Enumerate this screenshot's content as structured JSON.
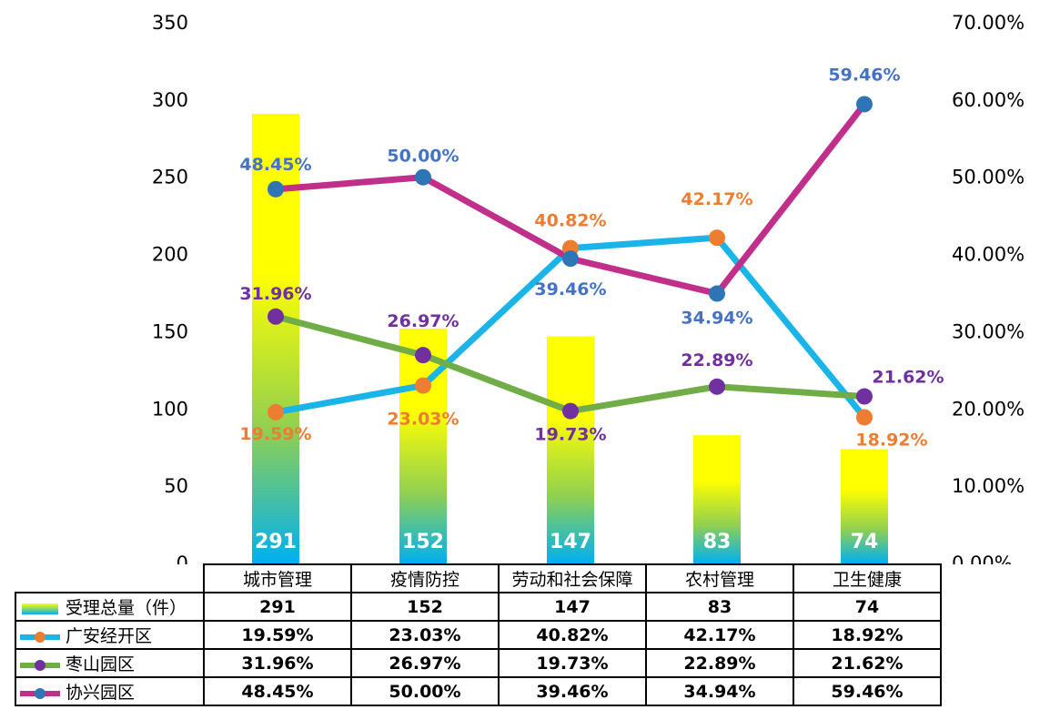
{
  "chart_data": {
    "type": "bar+line",
    "categories": [
      "城市管理",
      "疫情防控",
      "劳动和社会保障",
      "农村管理",
      "卫生健康"
    ],
    "bars": {
      "name": "受理总量（件）",
      "values": [
        291,
        152,
        147,
        83,
        74
      ],
      "labels": [
        "291",
        "152",
        "147",
        "83",
        "74"
      ]
    },
    "series": [
      {
        "name": "广安经开区",
        "values": [
          19.59,
          23.03,
          40.82,
          42.17,
          18.92
        ],
        "labels": [
          "19.59%",
          "23.03%",
          "40.82%",
          "42.17%",
          "18.92%"
        ],
        "line_color": "#1AB4E8",
        "marker_color": "#ED7D31",
        "label_color": "#ED7D31"
      },
      {
        "name": "枣山园区",
        "values": [
          31.96,
          26.97,
          19.73,
          22.89,
          21.62
        ],
        "labels": [
          "31.96%",
          "26.97%",
          "19.73%",
          "22.89%",
          "21.62%"
        ],
        "line_color": "#70AD47",
        "marker_color": "#7030A0",
        "label_color": "#7030A0"
      },
      {
        "name": "协兴园区",
        "values": [
          48.45,
          50.0,
          39.46,
          34.94,
          59.46
        ],
        "labels": [
          "48.45%",
          "50.00%",
          "39.46%",
          "34.94%",
          "59.46%"
        ],
        "line_color": "#C0308A",
        "marker_color": "#2E75B6",
        "label_color": "#4472C4"
      }
    ],
    "y_left": {
      "ticks": [
        "0",
        "50",
        "100",
        "150",
        "200",
        "250",
        "300",
        "350"
      ],
      "range": [
        0,
        350
      ]
    },
    "y_right": {
      "ticks": [
        "0.00%",
        "10.00%",
        "20.00%",
        "30.00%",
        "40.00%",
        "50.00%",
        "60.00%",
        "70.00%"
      ],
      "range": [
        0,
        70
      ]
    },
    "grid": false,
    "legend": "data-table-below",
    "bar_gradient": [
      "#FFFF00",
      "#92D050",
      "#00B0F0"
    ]
  }
}
